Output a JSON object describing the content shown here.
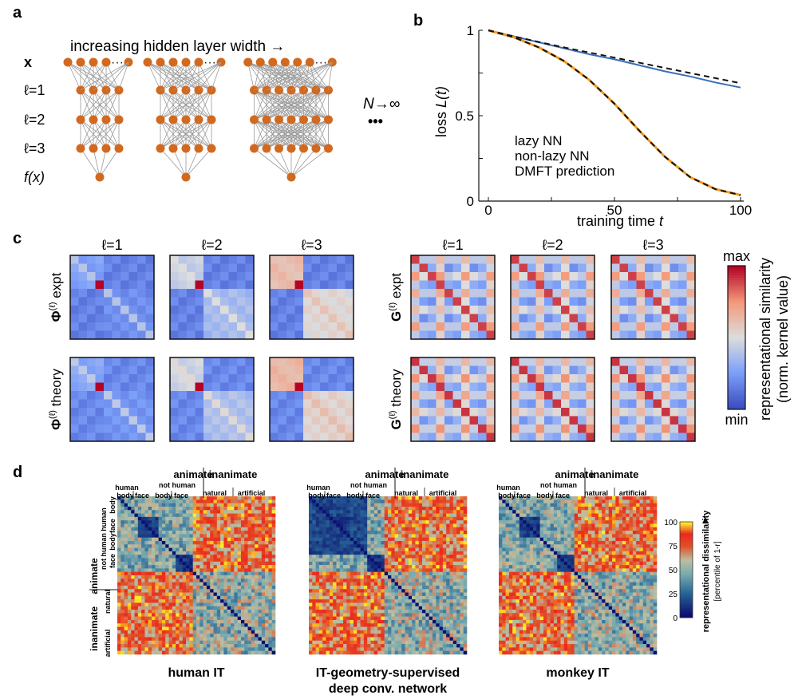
{
  "panel_a": {
    "letter": "a",
    "title": "increasing hidden layer width →",
    "layers": [
      {
        "label_main": "x",
        "label_sup": ""
      },
      {
        "label_main": "ℓ=1",
        "label_sup": ""
      },
      {
        "label_main": "ℓ=2",
        "label_sup": ""
      },
      {
        "label_main": "ℓ=3",
        "label_sup": ""
      },
      {
        "label_main": "f(x)",
        "label_sup": ""
      }
    ],
    "dots": "····",
    "limit_label": "N→∞",
    "ellipsis": "•••",
    "networks": [
      {
        "input": 4,
        "hidden": 4,
        "output": 1
      },
      {
        "input": 5,
        "hidden": 5,
        "output": 1
      },
      {
        "input": 6,
        "hidden": 7,
        "output": 1
      }
    ],
    "node_color": "#D2691E",
    "edge_color": "#9a9a9a"
  },
  "panel_b": {
    "letter": "b",
    "legend": [
      "lazy NN",
      "non-lazy NN",
      "DMFT prediction"
    ],
    "colors": {
      "lazy": "#3a6fb5",
      "nonlazy": "#f39a1f",
      "dmft": "#111111"
    }
  },
  "panel_c": {
    "letter": "c",
    "col_labels": [
      "ℓ=1",
      "ℓ=2",
      "ℓ=3"
    ],
    "phi_rows": [
      {
        "sym": "Φ",
        "sup": "(ℓ)",
        "tail": " expt"
      },
      {
        "sym": "Φ",
        "sup": "(ℓ)",
        "tail": " theory"
      }
    ],
    "g_rows": [
      {
        "sym": "G",
        "sup": "(ℓ)",
        "tail": " expt"
      },
      {
        "sym": "G",
        "sup": "(ℓ)",
        "tail": " theory"
      }
    ],
    "colorbar": {
      "max": "max",
      "min": "min",
      "label_line1": "representational similarity",
      "label_line2": "(norm. kernel value)"
    }
  },
  "panel_d": {
    "letter": "d",
    "matrices": [
      {
        "caption_lines": [
          "human IT"
        ]
      },
      {
        "caption_lines": [
          "IT-geometry-supervised",
          "deep conv. network"
        ]
      },
      {
        "caption_lines": [
          "monkey IT"
        ]
      }
    ],
    "top_labels": {
      "animate": "animate",
      "inanimate": "inanimate",
      "human": "human",
      "not_human": "not human",
      "body": "body",
      "face": "face",
      "natural": "natural",
      "artificial": "artificial"
    },
    "left_labels": {
      "animate": "animate",
      "inanimate": "inanimate",
      "human": "human",
      "not_human": "not human",
      "body": "body",
      "face": "face",
      "natural": "natural",
      "artificial": "artificial"
    },
    "colorbar": {
      "ticks": [
        "100",
        "75",
        "50",
        "25",
        "0"
      ],
      "label_line1": "representational dissimilarity",
      "label_line2": "[percentile of 1-r]"
    }
  },
  "chart_data": {
    "type": "line",
    "title": "",
    "xlabel": "training time t",
    "ylabel": "loss L(t)",
    "xlim": [
      0,
      100
    ],
    "ylim": [
      0,
      1
    ],
    "x_ticks": [
      "0",
      "50",
      "100"
    ],
    "y_ticks": [
      "0",
      "0.5",
      "1"
    ],
    "legend_position": "center",
    "grid": false,
    "x": [
      0,
      10,
      20,
      30,
      40,
      50,
      60,
      70,
      80,
      90,
      100
    ],
    "series": [
      {
        "name": "lazy NN",
        "values": [
          1.0,
          0.965,
          0.93,
          0.895,
          0.86,
          0.83,
          0.795,
          0.76,
          0.73,
          0.695,
          0.665
        ]
      },
      {
        "name": "non-lazy NN",
        "values": [
          1.0,
          0.96,
          0.9,
          0.82,
          0.71,
          0.57,
          0.41,
          0.26,
          0.14,
          0.07,
          0.035
        ]
      },
      {
        "name": "DMFT prediction",
        "values": [
          1.0,
          0.965,
          0.932,
          0.9,
          0.87,
          0.84,
          0.81,
          0.78,
          0.75,
          0.72,
          0.69
        ]
      },
      {
        "name": "DMFT prediction",
        "values": [
          1.0,
          0.96,
          0.9,
          0.82,
          0.71,
          0.57,
          0.41,
          0.26,
          0.14,
          0.07,
          0.035
        ]
      }
    ]
  }
}
